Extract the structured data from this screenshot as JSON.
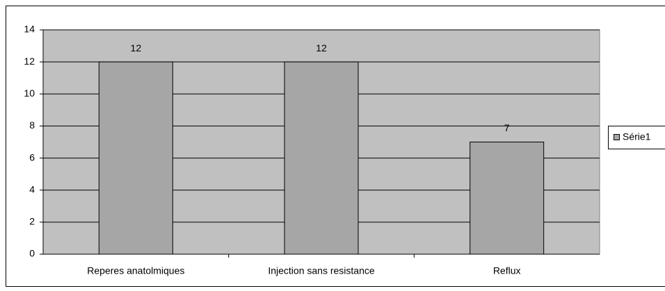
{
  "chart_data": {
    "type": "bar",
    "categories": [
      "Reperes anatolmiques",
      "Injection sans resistance",
      "Reflux"
    ],
    "series": [
      {
        "name": "Série1",
        "color": "#a6a6a6",
        "values": [
          12,
          12,
          7
        ]
      }
    ],
    "ylim": [
      0,
      14
    ],
    "yticks": [
      0,
      2,
      4,
      6,
      8,
      10,
      12,
      14
    ],
    "grid": true,
    "legend": "right",
    "plot_background": "#c0c0c0"
  }
}
